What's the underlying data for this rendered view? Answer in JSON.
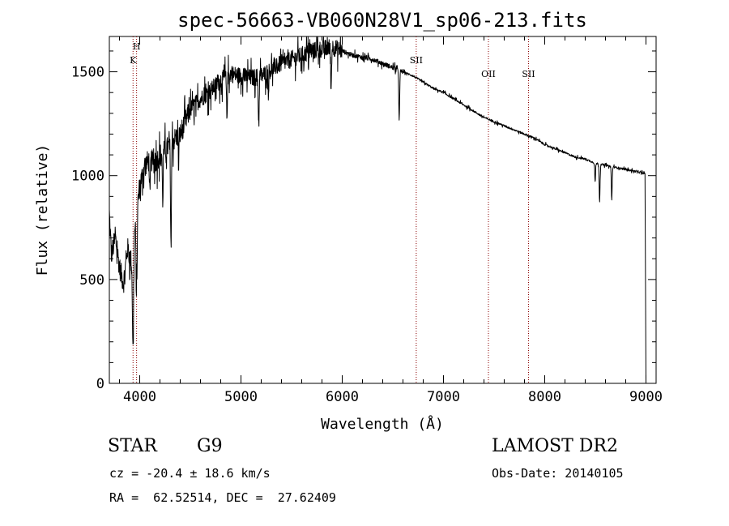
{
  "chart_data": {
    "type": "line",
    "title": "spec-56663-VB060N28V1_sp06-213.fits",
    "xlabel": "Wavelength (Å)",
    "ylabel": "Flux (relative)",
    "xlim": [
      3700,
      9100
    ],
    "ylim": [
      0,
      1670
    ],
    "xticks": [
      4000,
      5000,
      6000,
      7000,
      8000,
      9000
    ],
    "yticks": [
      0,
      500,
      1000,
      1500
    ],
    "grid": false,
    "line_color": "#000000",
    "marker_color": "#8b0000",
    "continuum": [
      [
        3700,
        820
      ],
      [
        3720,
        620
      ],
      [
        3760,
        700
      ],
      [
        3800,
        560
      ],
      [
        3840,
        480
      ],
      [
        3880,
        650
      ],
      [
        3920,
        580
      ],
      [
        3970,
        850
      ],
      [
        4000,
        950
      ],
      [
        4050,
        1050
      ],
      [
        4100,
        1080
      ],
      [
        4150,
        1060
      ],
      [
        4200,
        1100
      ],
      [
        4250,
        1120
      ],
      [
        4300,
        1150
      ],
      [
        4350,
        1180
      ],
      [
        4400,
        1200
      ],
      [
        4450,
        1260
      ],
      [
        4500,
        1320
      ],
      [
        4600,
        1370
      ],
      [
        4700,
        1410
      ],
      [
        4800,
        1460
      ],
      [
        4900,
        1490
      ],
      [
        5000,
        1480
      ],
      [
        5100,
        1470
      ],
      [
        5200,
        1480
      ],
      [
        5300,
        1510
      ],
      [
        5400,
        1540
      ],
      [
        5500,
        1560
      ],
      [
        5600,
        1580
      ],
      [
        5700,
        1600
      ],
      [
        5800,
        1610
      ],
      [
        5900,
        1620
      ],
      [
        6000,
        1600
      ],
      [
        6100,
        1580
      ],
      [
        6200,
        1570
      ],
      [
        6300,
        1560
      ],
      [
        6400,
        1540
      ],
      [
        6500,
        1520
      ],
      [
        6600,
        1500
      ],
      [
        6700,
        1480
      ],
      [
        6800,
        1450
      ],
      [
        6900,
        1420
      ],
      [
        7000,
        1400
      ],
      [
        7100,
        1370
      ],
      [
        7200,
        1340
      ],
      [
        7300,
        1310
      ],
      [
        7400,
        1280
      ],
      [
        7500,
        1260
      ],
      [
        7600,
        1240
      ],
      [
        7700,
        1220
      ],
      [
        7800,
        1200
      ],
      [
        7900,
        1180
      ],
      [
        8000,
        1150
      ],
      [
        8100,
        1130
      ],
      [
        8200,
        1110
      ],
      [
        8300,
        1090
      ],
      [
        8400,
        1080
      ],
      [
        8500,
        1060
      ],
      [
        8600,
        1050
      ],
      [
        8700,
        1040
      ],
      [
        8800,
        1030
      ],
      [
        8900,
        1020
      ],
      [
        8990,
        1010
      ],
      [
        9000,
        0
      ]
    ],
    "absorption_features": [
      {
        "center": 3934,
        "depth": 500,
        "width": 8
      },
      {
        "center": 3969,
        "depth": 420,
        "width": 8
      },
      {
        "center": 4101,
        "depth": 180,
        "width": 6
      },
      {
        "center": 4227,
        "depth": 250,
        "width": 5
      },
      {
        "center": 4308,
        "depth": 500,
        "width": 6
      },
      {
        "center": 4384,
        "depth": 150,
        "width": 5
      },
      {
        "center": 4861,
        "depth": 200,
        "width": 6
      },
      {
        "center": 5175,
        "depth": 250,
        "width": 6
      },
      {
        "center": 5270,
        "depth": 100,
        "width": 4
      },
      {
        "center": 5890,
        "depth": 200,
        "width": 6
      },
      {
        "center": 6563,
        "depth": 250,
        "width": 6
      },
      {
        "center": 8498,
        "depth": 90,
        "width": 6
      },
      {
        "center": 8542,
        "depth": 180,
        "width": 6
      },
      {
        "center": 8662,
        "depth": 160,
        "width": 6
      }
    ],
    "line_markers": [
      {
        "label": "H",
        "x": 3969
      },
      {
        "label": "K",
        "x": 3934
      },
      {
        "label": "SII",
        "x": 6731
      },
      {
        "label": "OII",
        "x": 7444
      },
      {
        "label": "SII",
        "x": 7840
      }
    ]
  },
  "info": {
    "object_class": "STAR",
    "subclass": "G9",
    "survey": "LAMOST DR2",
    "redshift_line": "cz = -20.4 ± 18.6 km/s",
    "coords_line": "RA =  62.52514, DEC =  27.62409",
    "obs_date_line": "Obs-Date: 20140105"
  }
}
